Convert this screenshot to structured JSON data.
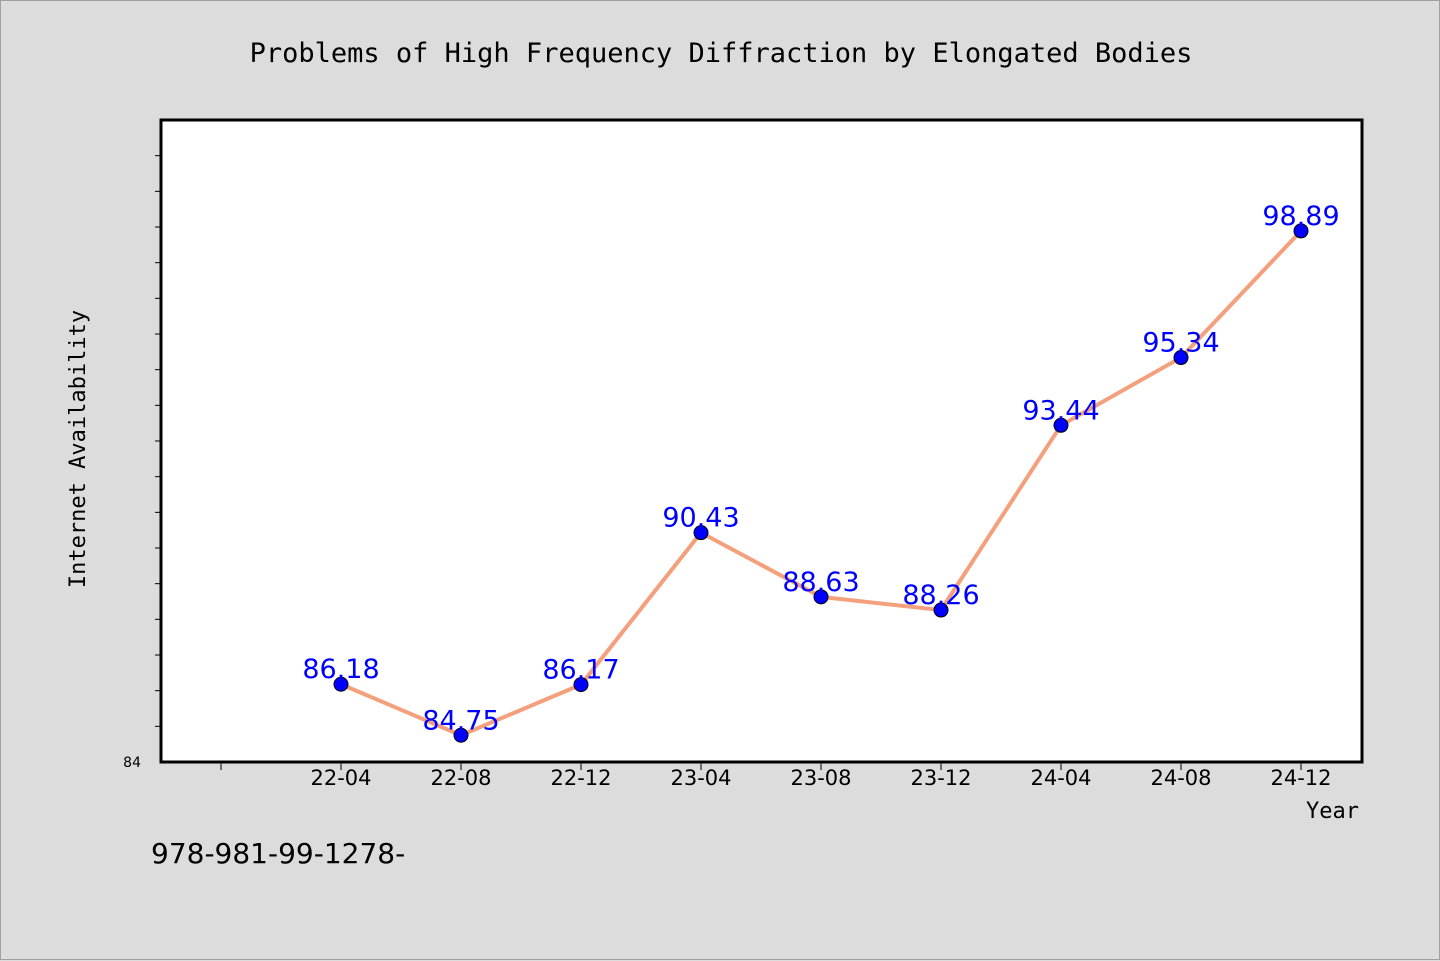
{
  "chart_data": {
    "type": "line",
    "title": "Problems of High Frequency Diffraction by Elongated Bodies",
    "xlabel": "Year",
    "ylabel": "Internet Availability",
    "categories": [
      "22-04",
      "22-08",
      "22-12",
      "23-04",
      "23-08",
      "23-12",
      "24-04",
      "24-08",
      "24-12"
    ],
    "series": [
      {
        "values": [
          86.18,
          84.75,
          86.17,
          90.43,
          88.63,
          88.26,
          93.44,
          95.34,
          98.89
        ]
      }
    ],
    "data_labels": [
      "86.18",
      "84.75",
      "86.17",
      "90.43",
      "88.63",
      "88.26",
      "93.44",
      "95.34",
      "98.89"
    ],
    "ylim": [
      84,
      102
    ],
    "y_tick_label": "84",
    "grid": false,
    "line_color": "#f4a07c",
    "marker_color": "#0000ff",
    "label_color": "#0000ff"
  },
  "footer": {
    "text": "978-981-99-1278-"
  }
}
